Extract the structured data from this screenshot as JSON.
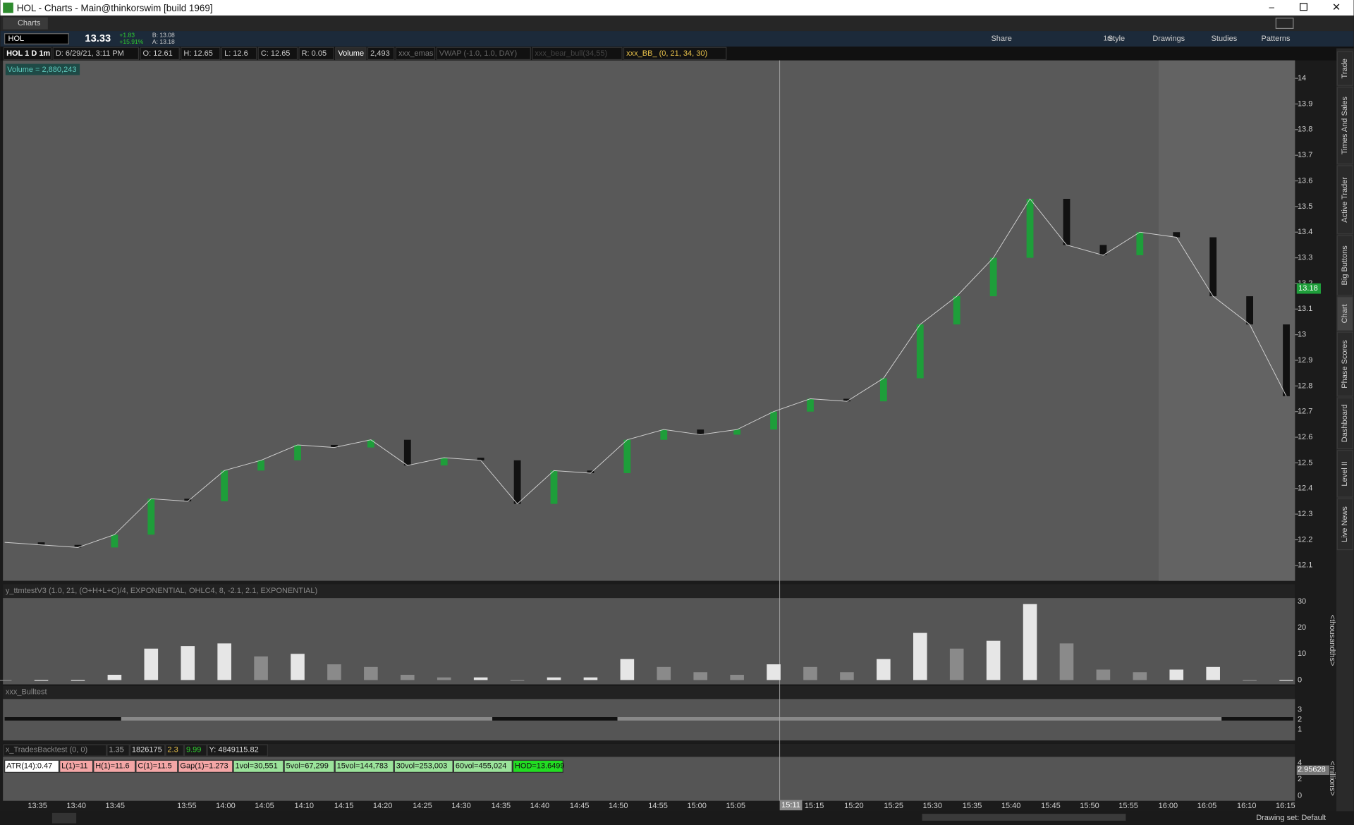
{
  "window": {
    "title": "HOL - Charts -  Main@thinkorswim [build 1969]",
    "tab": "Charts"
  },
  "toolbar": {
    "symbol": "HOL",
    "last": "13.33",
    "change": "+1.83",
    "pct": "+15.91%",
    "bid": "B: 13.08",
    "ask": "A: 13.18",
    "timeframe": "1m",
    "buttons": [
      "Share",
      "Style",
      "Drawings",
      "Studies",
      "Patterns"
    ]
  },
  "header_bar": [
    "HOL 1 D 1m",
    "D: 6/29/21, 3:11 PM",
    "O: 12.61",
    "H: 12.65",
    "L: 12.6",
    "C: 12.65",
    "R: 0.05",
    "Volume",
    "2,493",
    "xxx_emas",
    "VWAP (-1.0, 1.0, DAY)",
    "xxx_bear_bull(34,55)",
    "xxx_BB_ (0, 21, 34, 30)"
  ],
  "volume_label": "Volume = 2,880,243",
  "chart_data": {
    "type": "candle",
    "ylim": [
      12.04,
      14.07
    ],
    "yticks": [
      12.1,
      12.2,
      12.3,
      12.4,
      12.5,
      12.6,
      12.7,
      12.8,
      12.9,
      13,
      13.1,
      13.2,
      13.3,
      13.4,
      13.5,
      13.6,
      13.7,
      13.8,
      13.9,
      14
    ],
    "current_price": 13.18,
    "closes": [
      12.19,
      12.18,
      12.17,
      12.22,
      12.36,
      12.35,
      12.47,
      12.51,
      12.57,
      12.56,
      12.59,
      12.49,
      12.52,
      12.51,
      12.34,
      12.47,
      12.46,
      12.59,
      12.63,
      12.61,
      12.63,
      12.7,
      12.75,
      12.74,
      12.83,
      13.04,
      13.15,
      13.3,
      13.53,
      13.35,
      13.31,
      13.4,
      13.38,
      13.15,
      13.04,
      12.76
    ],
    "up_color": "#1e9e3a",
    "down_color": "#111111"
  },
  "study1": {
    "label": "y_ttmtestV3 (1.0, 21, (O+H+L+C)/4, EXPONENTIAL, OHLC4, 8, -2.1, 2.1, EXPONENTIAL)",
    "unit": "<thousandths>",
    "ylim": [
      0,
      30
    ],
    "yticks": [
      0,
      10,
      20,
      30
    ],
    "values": [
      0,
      0,
      0,
      2,
      12,
      13,
      14,
      9,
      10,
      6,
      5,
      2,
      1,
      1,
      0,
      1,
      1,
      8,
      5,
      3,
      2,
      6,
      5,
      3,
      8,
      18,
      12,
      15,
      29,
      14,
      4,
      3,
      4,
      5,
      0,
      0
    ]
  },
  "study2": {
    "label": "xxx_Bulltest",
    "yticks": [
      1,
      2,
      3
    ]
  },
  "study3": {
    "label": "x_TradesBacktest (0, 0)",
    "fields": [
      "1.35",
      "1826175",
      "2.3",
      "9.99",
      "Y: 4849115.82"
    ],
    "unit": "<millions>",
    "yticks": [
      0,
      2,
      4
    ],
    "current": "2.95628",
    "boxes": [
      {
        "text": "ATR(14):0.47",
        "color": "#ffffff"
      },
      {
        "text": "L(1)=11",
        "color": "#f4a6a6"
      },
      {
        "text": "H(1)=11.6",
        "color": "#f4a6a6"
      },
      {
        "text": "C(1)=11.5",
        "color": "#f4a6a6"
      },
      {
        "text": "Gap(1)=1.273",
        "color": "#f4a6a6"
      },
      {
        "text": "1vol=30,551",
        "color": "#9be39b"
      },
      {
        "text": "5vol=67,299",
        "color": "#9be39b"
      },
      {
        "text": "15vol=144,783",
        "color": "#9be39b"
      },
      {
        "text": "30vol=253,003",
        "color": "#9be39b"
      },
      {
        "text": "60vol=455,024",
        "color": "#9be39b"
      },
      {
        "text": "HOD=13.6499",
        "color": "#22dd22"
      }
    ]
  },
  "time_axis": {
    "labels": [
      "13:35",
      "13:40",
      "13:45",
      "13:55",
      "14:00",
      "14:05",
      "14:10",
      "14:15",
      "14:20",
      "14:25",
      "14:30",
      "14:35",
      "14:40",
      "14:45",
      "14:50",
      "14:55",
      "15:00",
      "15:05",
      "15:15",
      "15:20",
      "15:25",
      "15:30",
      "15:35",
      "15:40",
      "15:45",
      "15:50",
      "15:55",
      "16:00",
      "16:05",
      "16:10",
      "16:15"
    ],
    "cursor": "15:11"
  },
  "side_tabs": [
    "Trade",
    "Times And Sales",
    "Active Trader",
    "Big Buttons",
    "Chart",
    "Phase Scores",
    "Dashboard",
    "Level II",
    "Live News"
  ],
  "status": "Drawing set: Default"
}
